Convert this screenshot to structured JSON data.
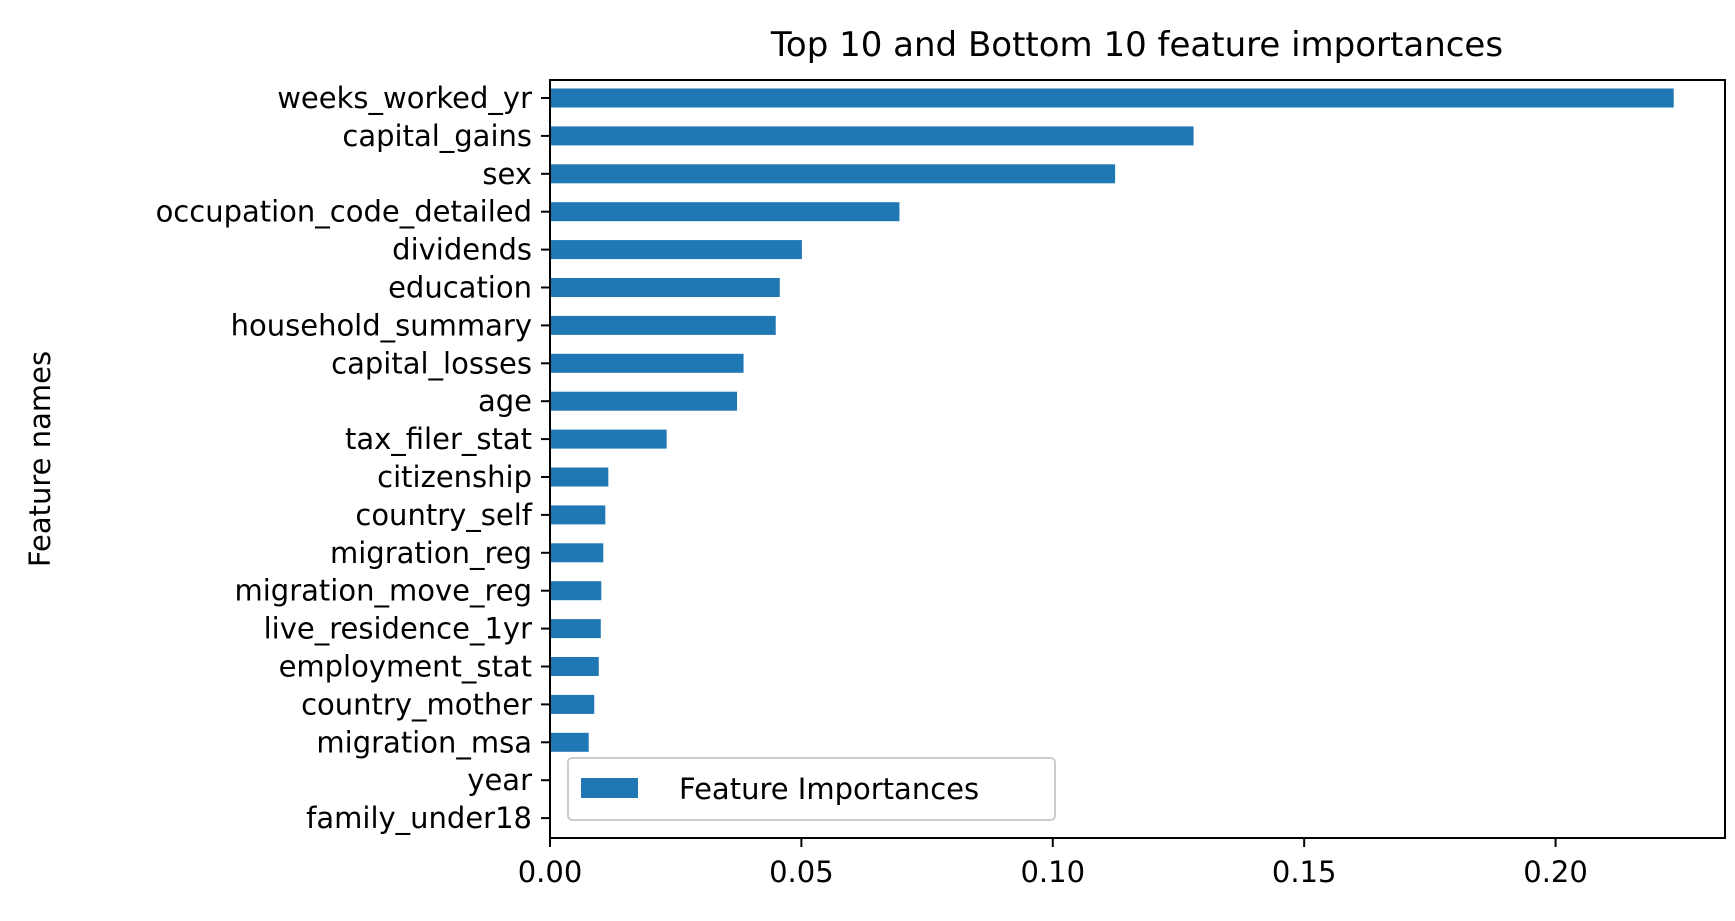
{
  "chart_data": {
    "type": "bar",
    "orientation": "horizontal",
    "title": "Top 10 and Bottom 10 feature importances",
    "xlabel": "",
    "ylabel": "Feature names",
    "categories": [
      "weeks_worked_yr",
      "capital_gains",
      "sex",
      "occupation_code_detailed",
      "dividends",
      "education",
      "household_summary",
      "capital_losses",
      "age",
      "tax_filer_stat",
      "citizenship",
      "country_self",
      "migration_reg",
      "migration_move_reg",
      "live_residence_1yr",
      "employment_stat",
      "country_mother",
      "migration_msa",
      "year",
      "family_under18"
    ],
    "series": [
      {
        "name": "Feature Importances",
        "color": "#1f77b4",
        "values": [
          0.2235,
          0.128,
          0.1124,
          0.0695,
          0.0501,
          0.0457,
          0.0449,
          0.0385,
          0.0372,
          0.0232,
          0.0116,
          0.011,
          0.0106,
          0.0102,
          0.0101,
          0.0097,
          0.0088,
          0.0077,
          0.0,
          0.0
        ]
      }
    ],
    "xlim": [
      0.0,
      0.2337
    ],
    "xticks": [
      0.0,
      0.05,
      0.1,
      0.15,
      0.2
    ],
    "xtick_labels": [
      "0.00",
      "0.05",
      "0.10",
      "0.15",
      "0.20"
    ],
    "legend": {
      "position": "lower-left",
      "entries": [
        "Feature Importances"
      ]
    },
    "grid": false
  }
}
